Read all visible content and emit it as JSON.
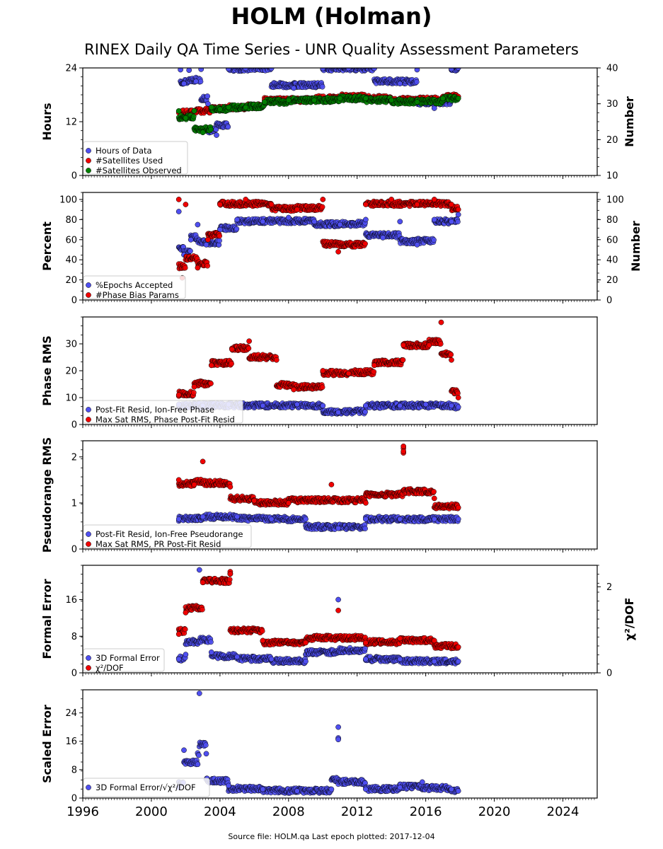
{
  "title": "HOLM (Holman)",
  "subtitle": "RINEX Daily QA Time Series - UNR Quality Assessment Parameters",
  "source": "Source file: HOLM.qa Last epoch plotted: 2017-12-04",
  "colors": {
    "blue": "#4f4ff0",
    "red": "#f00000",
    "green": "#007f00"
  },
  "chart_data": [
    {
      "type": "scatter",
      "ylabel": "Hours",
      "y2label": "Number",
      "xlim": [
        1996,
        2026
      ],
      "ylim": [
        0,
        24
      ],
      "y2lim": [
        10,
        40
      ],
      "yticks": [
        "0",
        "12",
        "24"
      ],
      "y2ticks": [
        "10",
        "20",
        "30",
        "40"
      ],
      "legend_loc": "lower-left",
      "series": [
        {
          "name": "Hours of Data",
          "color": "blue",
          "axis": "left",
          "x": [
            2001.7,
            2001.9,
            2002.2,
            2002.6,
            2002.9,
            2003.3,
            2003.8,
            2004.5,
            2005.5,
            2007.0,
            2008.3,
            2010.0,
            2011.5,
            2013.0,
            2014.5,
            2015.5,
            2016.5,
            2017.5,
            2017.9
          ],
          "y": [
            23.6,
            20.5,
            23.5,
            21.0,
            23.7,
            16.0,
            9.0,
            23.8,
            23.9,
            23.9,
            19.5,
            23.9,
            23.9,
            23.9,
            20.5,
            23.6,
            15.0,
            23.8,
            24.0
          ]
        },
        {
          "name": "#Satellites Used",
          "color": "red",
          "axis": "right",
          "x": [
            2001.6,
            2002.5,
            2003.5,
            2004.5,
            2005.5,
            2006.6,
            2008.0,
            2009.5,
            2011.0,
            2012.5,
            2014.0,
            2015.5,
            2017.0,
            2017.9
          ],
          "y": [
            27.5,
            28.0,
            28.5,
            29.0,
            29.0,
            31.0,
            31.0,
            31.5,
            32.0,
            32.0,
            31.5,
            31.0,
            32.0,
            32.0
          ]
        },
        {
          "name": "#Satellites Observed",
          "color": "green",
          "axis": "right",
          "x": [
            2001.6,
            2002.0,
            2002.5,
            2003.0,
            2003.5,
            2004.0,
            2004.5,
            2005.5,
            2006.6,
            2008.0,
            2009.5,
            2011.0,
            2012.5,
            2014.0,
            2015.5,
            2017.0,
            2017.9
          ],
          "y": [
            28.0,
            26.0,
            28.0,
            22.0,
            29.0,
            28.5,
            29.0,
            29.0,
            30.5,
            31.0,
            31.0,
            31.5,
            31.5,
            31.0,
            30.5,
            31.5,
            31.5
          ]
        }
      ]
    },
    {
      "type": "scatter",
      "ylabel": "Percent",
      "y2label": "Number",
      "xlim": [
        1996,
        2026
      ],
      "ylim": [
        0,
        107
      ],
      "y2lim": [
        0,
        107
      ],
      "yticks": [
        "0",
        "20",
        "40",
        "60",
        "80",
        "100"
      ],
      "y2ticks": [
        "0",
        "20",
        "40",
        "60",
        "80",
        "100"
      ],
      "legend_loc": "lower-left",
      "series": [
        {
          "name": "%Epochs Accepted",
          "color": "blue",
          "axis": "left",
          "x": [
            2001.6,
            2001.9,
            2002.3,
            2002.7,
            2003.2,
            2004.0,
            2005.0,
            2006.5,
            2008.0,
            2009.5,
            2011.0,
            2012.5,
            2013.5,
            2014.5,
            2015.5,
            2016.5,
            2017.5,
            2017.9
          ],
          "y": [
            88,
            45,
            60,
            75,
            55,
            70,
            80,
            78,
            82,
            78,
            75,
            80,
            62,
            78,
            55,
            80,
            78,
            85
          ]
        },
        {
          "name": "#Phase Bias Params",
          "color": "red",
          "axis": "right",
          "x": [
            2001.6,
            2001.8,
            2002.0,
            2002.7,
            2003.3,
            2004.0,
            2005.5,
            2007.0,
            2008.5,
            2010.0,
            2010.9,
            2012.5,
            2014.0,
            2015.5,
            2016.5,
            2017.5,
            2017.9
          ],
          "y": [
            100,
            22,
            95,
            32,
            60,
            95,
            100,
            95,
            90,
            100,
            48,
            95,
            100,
            95,
            100,
            95,
            90
          ]
        }
      ]
    },
    {
      "type": "scatter",
      "ylabel": "Phase RMS",
      "xlim": [
        1996,
        2026
      ],
      "ylim": [
        0,
        40
      ],
      "yticks": [
        "0",
        "10",
        "20",
        "30"
      ],
      "legend_loc": "lower-left",
      "series": [
        {
          "name": "Post-Fit Resid, Ion-Free Phase",
          "color": "blue",
          "axis": "left",
          "x": [
            2001.6,
            2003.0,
            2004.5,
            2006.5,
            2008.5,
            2010.0,
            2010.9,
            2012.5,
            2014.5,
            2016.0,
            2017.5,
            2017.9
          ],
          "y": [
            7.5,
            7.0,
            7.5,
            7.0,
            7.5,
            7.0,
            4.5,
            7.0,
            7.0,
            7.5,
            7.0,
            6.5
          ]
        },
        {
          "name": "Max Sat RMS, Phase Post-Fit Resid",
          "color": "red",
          "axis": "left",
          "x": [
            2001.6,
            2002.5,
            2003.5,
            2004.7,
            2005.7,
            2007.3,
            2008.3,
            2010.0,
            2011.5,
            2013.0,
            2014.7,
            2016.2,
            2016.9,
            2017.5,
            2017.9
          ],
          "y": [
            11,
            14,
            22,
            28,
            31,
            24,
            13,
            20,
            19,
            22,
            29.5,
            29.5,
            38,
            24,
            10
          ]
        }
      ]
    },
    {
      "type": "scatter",
      "ylabel": "Pseudorange RMS",
      "xlim": [
        1996,
        2026
      ],
      "ylim": [
        0,
        2.35
      ],
      "yticks": [
        "0",
        "1",
        "2"
      ],
      "legend_loc": "lower-left",
      "series": [
        {
          "name": "Post-Fit Resid, Ion-Free Pseudorange",
          "color": "blue",
          "axis": "left",
          "x": [
            2001.6,
            2003.0,
            2005.0,
            2007.0,
            2009.0,
            2010.9,
            2012.5,
            2014.5,
            2016.5,
            2017.9
          ],
          "y": [
            0.65,
            0.7,
            0.7,
            0.65,
            0.65,
            0.45,
            0.65,
            0.65,
            0.65,
            0.65
          ]
        },
        {
          "name": "Max Sat RMS, PR Post-Fit Resid",
          "color": "red",
          "axis": "left",
          "x": [
            2001.6,
            2002.5,
            2003.0,
            2004.6,
            2006.0,
            2008.0,
            2010.5,
            2012.5,
            2014.7,
            2014.7,
            2016.5,
            2017.9
          ],
          "y": [
            1.5,
            1.4,
            1.9,
            1.35,
            1.05,
            1.0,
            1.4,
            1.0,
            2.23,
            2.12,
            1.1,
            0.9
          ]
        }
      ]
    },
    {
      "type": "scatter",
      "ylabel": "Formal Error",
      "y2label": "χ²/DOF",
      "xlim": [
        1996,
        2026
      ],
      "ylim": [
        0,
        23.5
      ],
      "y2lim": [
        0,
        2.5
      ],
      "yticks": [
        "0",
        "8",
        "16"
      ],
      "y2ticks": [
        "0",
        "2"
      ],
      "legend_loc": "lower-left",
      "series": [
        {
          "name": "3D Formal Error",
          "color": "blue",
          "axis": "left",
          "x": [
            2001.6,
            2002.0,
            2002.8,
            2003.5,
            2005.0,
            2007.0,
            2009.0,
            2010.9,
            2012.5,
            2014.5,
            2016.5,
            2017.9
          ],
          "y": [
            3.0,
            4.0,
            22.5,
            4.5,
            3.5,
            3.0,
            2.5,
            16.0,
            3.0,
            3.0,
            2.5,
            2.5
          ]
        },
        {
          "name": "χ²/DOF",
          "color": "red",
          "axis": "right",
          "x": [
            2001.6,
            2002.0,
            2003.0,
            2004.6,
            2004.6,
            2006.5,
            2009.0,
            2010.9,
            2012.5,
            2014.5,
            2016.5,
            2017.9
          ],
          "y": [
            0.9,
            1.4,
            2.1,
            2.35,
            2.3,
            0.75,
            0.7,
            1.45,
            0.7,
            0.8,
            0.75,
            0.6
          ]
        }
      ]
    },
    {
      "type": "scatter",
      "ylabel": "Scaled Error",
      "xlim": [
        1996,
        2026
      ],
      "ylim": [
        0,
        30.5
      ],
      "yticks": [
        "0",
        "8",
        "16",
        "24"
      ],
      "legend_loc": "lower-left",
      "series": [
        {
          "name": "3D Formal Error/√χ²/DOF",
          "color": "blue",
          "axis": "left",
          "x": [
            2001.6,
            2001.9,
            2002.7,
            2002.8,
            2003.2,
            2004.5,
            2006.5,
            2008.5,
            2010.5,
            2010.9,
            2010.9,
            2012.5,
            2014.5,
            2015.8,
            2017.5,
            2017.9
          ],
          "y": [
            3.0,
            13.5,
            9.5,
            29.5,
            12.5,
            3.5,
            2.5,
            2.0,
            2.5,
            20.0,
            16.5,
            2.5,
            3.0,
            4.5,
            2.5,
            2.0
          ]
        }
      ]
    }
  ],
  "xaxis": {
    "ticks": [
      "1996",
      "2000",
      "2004",
      "2008",
      "2012",
      "2016",
      "2020",
      "2024"
    ],
    "values": [
      1996,
      2000,
      2004,
      2008,
      2012,
      2016,
      2020,
      2024
    ]
  }
}
